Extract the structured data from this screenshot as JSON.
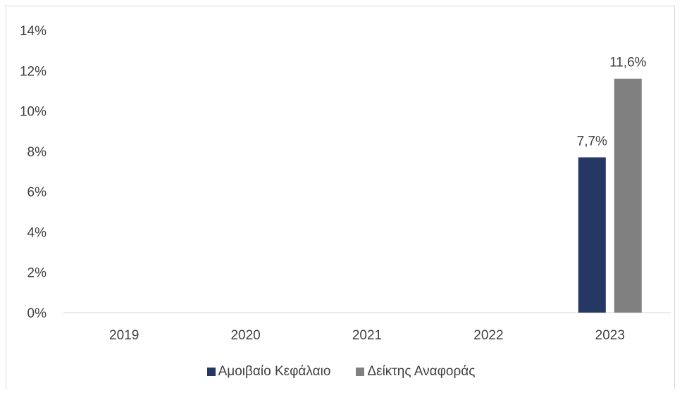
{
  "chart_data": {
    "type": "bar",
    "categories": [
      "2019",
      "2020",
      "2021",
      "2022",
      "2023"
    ],
    "series": [
      {
        "name": "Αμοιβαίο Κεφάλαιο",
        "color": "#253864",
        "values": [
          null,
          null,
          null,
          null,
          7.7
        ],
        "labels": [
          "",
          "",
          "",
          "",
          "7,7%"
        ]
      },
      {
        "name": "Δείκτης Αναφοράς",
        "color": "#808080",
        "values": [
          null,
          null,
          null,
          null,
          11.6
        ],
        "labels": [
          "",
          "",
          "",
          "",
          "11,6%"
        ]
      }
    ],
    "yticks": [
      "0%",
      "2%",
      "4%",
      "6%",
      "8%",
      "10%",
      "12%",
      "14%"
    ],
    "ylim": [
      0,
      14
    ],
    "title": "",
    "xlabel": "",
    "ylabel": "",
    "legend_position": "bottom",
    "grid": false
  }
}
